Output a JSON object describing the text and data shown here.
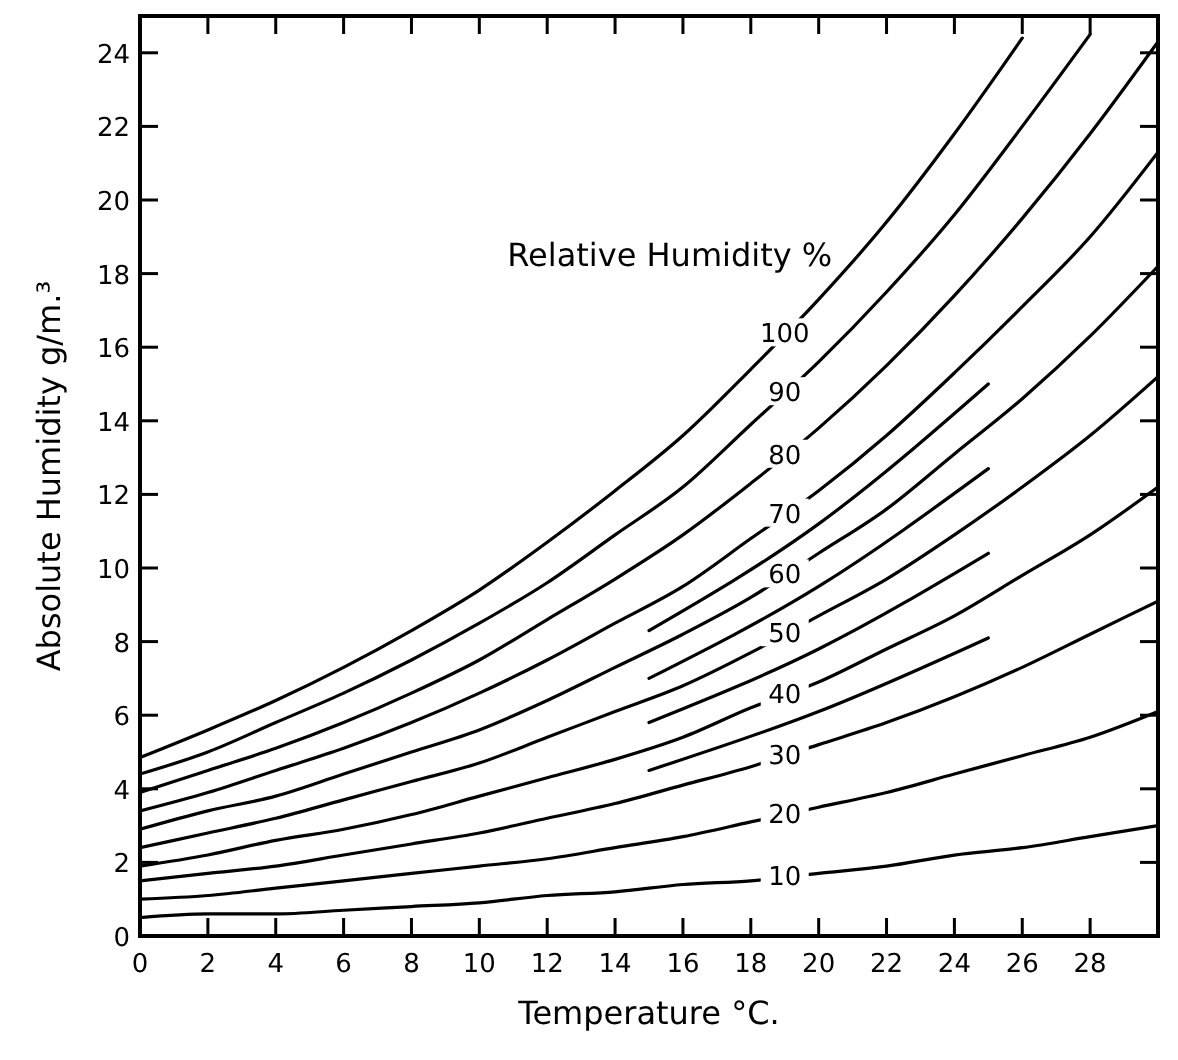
{
  "chart_data": {
    "type": "line",
    "xlabel": "Temperature °C.",
    "ylabel": "Absolute Humidity  g/m.³",
    "legend_title": "Relative Humidity %",
    "xlim": [
      0,
      30
    ],
    "ylim": [
      0,
      25
    ],
    "xticks": [
      0,
      2,
      4,
      6,
      8,
      10,
      12,
      14,
      16,
      18,
      20,
      22,
      24,
      26,
      28
    ],
    "yticks": [
      0,
      2,
      4,
      6,
      8,
      10,
      12,
      14,
      16,
      18,
      20,
      22,
      24
    ],
    "grid": false,
    "marker": "none",
    "line_style": "solid",
    "series": [
      {
        "name": "10",
        "color": "#000000",
        "x": [
          0,
          2,
          4,
          6,
          8,
          10,
          12,
          14,
          16,
          18,
          20,
          22,
          24,
          26,
          28,
          30
        ],
        "values": [
          0.5,
          0.6,
          0.6,
          0.7,
          0.8,
          0.9,
          1.1,
          1.2,
          1.4,
          1.5,
          1.7,
          1.9,
          2.2,
          2.4,
          2.7,
          3.0
        ]
      },
      {
        "name": "20",
        "color": "#000000",
        "x": [
          0,
          2,
          4,
          6,
          8,
          10,
          12,
          14,
          16,
          18,
          20,
          22,
          24,
          26,
          28,
          30
        ],
        "values": [
          1.0,
          1.1,
          1.3,
          1.5,
          1.7,
          1.9,
          2.1,
          2.4,
          2.7,
          3.1,
          3.5,
          3.9,
          4.4,
          4.9,
          5.4,
          6.1
        ]
      },
      {
        "name": "30",
        "color": "#000000",
        "x": [
          0,
          2,
          4,
          6,
          8,
          10,
          12,
          14,
          16,
          18,
          20,
          22,
          24,
          26,
          28,
          30
        ],
        "values": [
          1.5,
          1.7,
          1.9,
          2.2,
          2.5,
          2.8,
          3.2,
          3.6,
          4.1,
          4.6,
          5.2,
          5.8,
          6.5,
          7.3,
          8.2,
          9.1
        ]
      },
      {
        "name": "40",
        "color": "#000000",
        "x": [
          0,
          2,
          4,
          6,
          8,
          10,
          12,
          14,
          16,
          18,
          20,
          22,
          24,
          26,
          28,
          30
        ],
        "values": [
          1.9,
          2.2,
          2.6,
          2.9,
          3.3,
          3.8,
          4.3,
          4.8,
          5.4,
          6.2,
          6.9,
          7.8,
          8.7,
          9.8,
          10.9,
          12.2
        ]
      },
      {
        "name": "50",
        "color": "#000000",
        "x": [
          0,
          2,
          4,
          6,
          8,
          10,
          12,
          14,
          16,
          18,
          20,
          22,
          24,
          26,
          28,
          30
        ],
        "values": [
          2.4,
          2.8,
          3.2,
          3.7,
          4.2,
          4.7,
          5.4,
          6.1,
          6.8,
          7.7,
          8.7,
          9.7,
          10.9,
          12.2,
          13.6,
          15.2
        ]
      },
      {
        "name": "60",
        "color": "#000000",
        "x": [
          0,
          2,
          4,
          6,
          8,
          10,
          12,
          14,
          16,
          18,
          20,
          22,
          24,
          26,
          28,
          30
        ],
        "values": [
          2.9,
          3.4,
          3.8,
          4.4,
          5.0,
          5.6,
          6.4,
          7.3,
          8.2,
          9.2,
          10.4,
          11.6,
          13.1,
          14.6,
          16.3,
          18.2
        ]
      },
      {
        "name": "70",
        "color": "#000000",
        "x": [
          0,
          2,
          4,
          6,
          8,
          10,
          12,
          14,
          16,
          18,
          20,
          22,
          24,
          26,
          28,
          30
        ],
        "values": [
          3.4,
          3.9,
          4.5,
          5.1,
          5.8,
          6.6,
          7.5,
          8.5,
          9.5,
          10.8,
          12.1,
          13.6,
          15.3,
          17.1,
          19.0,
          21.3
        ]
      },
      {
        "name": "80",
        "color": "#000000",
        "x": [
          0,
          2,
          4,
          6,
          8,
          10,
          12,
          14,
          16,
          18,
          20,
          22,
          24,
          26,
          28,
          30
        ],
        "values": [
          3.9,
          4.5,
          5.1,
          5.8,
          6.6,
          7.5,
          8.6,
          9.7,
          10.9,
          12.3,
          13.8,
          15.5,
          17.4,
          19.5,
          21.8,
          24.3
        ]
      },
      {
        "name": "90",
        "color": "#000000",
        "x": [
          0,
          2,
          4,
          6,
          8,
          10,
          12,
          14,
          16,
          18,
          20,
          22,
          24,
          26,
          28
        ],
        "values": [
          4.4,
          5.0,
          5.8,
          6.6,
          7.5,
          8.5,
          9.6,
          10.9,
          12.2,
          13.9,
          15.6,
          17.5,
          19.6,
          22.0,
          24.5
        ]
      },
      {
        "name": "100",
        "color": "#000000",
        "x": [
          0,
          2,
          4,
          6,
          8,
          10,
          12,
          14,
          16,
          18,
          20,
          22,
          24,
          26
        ],
        "values": [
          4.85,
          5.6,
          6.4,
          7.3,
          8.3,
          9.4,
          10.7,
          12.1,
          13.6,
          15.4,
          17.3,
          19.4,
          21.8,
          24.4
        ]
      },
      {
        "color": "#000000",
        "x": [
          15,
          20,
          25
        ],
        "values": [
          4.5,
          6.1,
          8.1
        ]
      },
      {
        "color": "#000000",
        "x": [
          15,
          20,
          25
        ],
        "values": [
          5.8,
          7.8,
          10.4
        ]
      },
      {
        "color": "#000000",
        "x": [
          15,
          20,
          25
        ],
        "values": [
          7.0,
          9.5,
          12.7
        ]
      },
      {
        "color": "#000000",
        "x": [
          15,
          20,
          25
        ],
        "values": [
          8.3,
          11.2,
          15.0
        ]
      }
    ]
  }
}
